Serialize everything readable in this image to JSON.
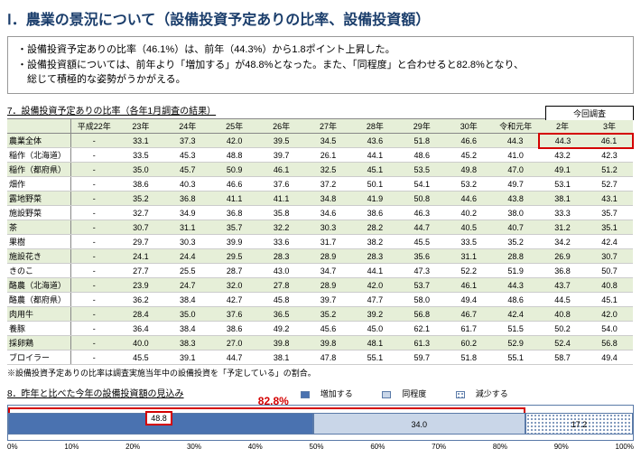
{
  "title": "Ⅰ．農業の景況について（設備投資予定ありの比率、設備投資額）",
  "summary": {
    "line1": "・設備投資予定ありの比率（46.1%）は、前年（44.3%）から1.8ポイント上昇した。",
    "line2": "・設備投資額については、前年より「増加する」が48.8%となった。また、「同程度」と合わせると82.8%となり、",
    "line3": "　総じて積極的な姿勢がうかがえる。"
  },
  "table7": {
    "heading": "7．設備投資予定ありの比率（各年1月調査の結果）",
    "this_survey": "今回調査",
    "years": [
      "",
      "平成22年",
      "23年",
      "24年",
      "25年",
      "26年",
      "27年",
      "28年",
      "29年",
      "30年",
      "令和元年",
      "2年",
      "3年"
    ],
    "rows": [
      {
        "label": "農業全体",
        "vals": [
          "-",
          "33.1",
          "37.3",
          "42.0",
          "39.5",
          "34.5",
          "43.6",
          "51.8",
          "46.6",
          "44.3",
          "44.3",
          "46.1"
        ],
        "alt": true,
        "hl": true
      },
      {
        "label": "稲作（北海道）",
        "vals": [
          "-",
          "33.5",
          "45.3",
          "48.8",
          "39.7",
          "26.1",
          "44.1",
          "48.6",
          "45.2",
          "41.0",
          "43.2",
          "42.3"
        ]
      },
      {
        "label": "稲作（都府県）",
        "vals": [
          "-",
          "35.0",
          "45.7",
          "50.9",
          "46.1",
          "32.5",
          "45.1",
          "53.5",
          "49.8",
          "47.0",
          "49.1",
          "51.2"
        ],
        "alt": true
      },
      {
        "label": "畑作",
        "vals": [
          "-",
          "38.6",
          "40.3",
          "46.6",
          "37.6",
          "37.2",
          "50.1",
          "54.1",
          "53.2",
          "49.7",
          "53.1",
          "52.7"
        ]
      },
      {
        "label": "露地野菜",
        "vals": [
          "-",
          "35.2",
          "36.8",
          "41.1",
          "41.1",
          "34.8",
          "41.9",
          "50.8",
          "44.6",
          "43.8",
          "38.1",
          "43.1"
        ],
        "alt": true
      },
      {
        "label": "施設野菜",
        "vals": [
          "-",
          "32.7",
          "34.9",
          "36.8",
          "35.8",
          "34.6",
          "38.6",
          "46.3",
          "40.2",
          "38.0",
          "33.3",
          "35.7"
        ]
      },
      {
        "label": "茶",
        "vals": [
          "-",
          "30.7",
          "31.1",
          "35.7",
          "32.2",
          "30.3",
          "28.2",
          "44.7",
          "40.5",
          "40.7",
          "31.2",
          "35.1"
        ],
        "alt": true
      },
      {
        "label": "果樹",
        "vals": [
          "-",
          "29.7",
          "30.3",
          "39.9",
          "33.6",
          "31.7",
          "38.2",
          "45.5",
          "33.5",
          "35.2",
          "34.2",
          "42.4"
        ]
      },
      {
        "label": "施設花き",
        "vals": [
          "-",
          "24.1",
          "24.4",
          "29.5",
          "28.3",
          "28.9",
          "28.3",
          "35.6",
          "31.1",
          "28.8",
          "26.9",
          "30.7"
        ],
        "alt": true
      },
      {
        "label": "きのこ",
        "vals": [
          "-",
          "27.7",
          "25.5",
          "28.7",
          "43.0",
          "34.7",
          "44.1",
          "47.3",
          "52.2",
          "51.9",
          "36.8",
          "50.7"
        ]
      },
      {
        "label": "酪農（北海道）",
        "vals": [
          "-",
          "23.9",
          "24.7",
          "32.0",
          "27.8",
          "28.9",
          "42.0",
          "53.7",
          "46.1",
          "44.3",
          "43.7",
          "40.8"
        ],
        "alt": true
      },
      {
        "label": "酪農（都府県）",
        "vals": [
          "-",
          "36.2",
          "38.4",
          "42.7",
          "45.8",
          "39.7",
          "47.7",
          "58.0",
          "49.4",
          "48.6",
          "44.5",
          "45.1"
        ]
      },
      {
        "label": "肉用牛",
        "vals": [
          "-",
          "28.4",
          "35.0",
          "37.6",
          "36.5",
          "35.2",
          "39.2",
          "56.8",
          "46.7",
          "42.4",
          "40.8",
          "42.0"
        ],
        "alt": true
      },
      {
        "label": "養豚",
        "vals": [
          "-",
          "36.4",
          "38.4",
          "38.6",
          "49.2",
          "45.6",
          "45.0",
          "62.1",
          "61.7",
          "51.5",
          "50.2",
          "54.0"
        ]
      },
      {
        "label": "採卵鶏",
        "vals": [
          "-",
          "40.0",
          "38.3",
          "27.0",
          "39.8",
          "39.8",
          "48.1",
          "61.3",
          "60.2",
          "52.9",
          "52.4",
          "56.8"
        ],
        "alt": true
      },
      {
        "label": "ブロイラー",
        "vals": [
          "-",
          "45.5",
          "39.1",
          "44.7",
          "38.1",
          "47.8",
          "55.1",
          "59.7",
          "51.8",
          "55.1",
          "58.7",
          "49.4"
        ]
      }
    ],
    "footnote": "※設備投資予定ありの比率は調査実施当年中の設備投資を「予定している」の割合。"
  },
  "chart8": {
    "heading": "8．昨年と比べた今年の設備投資額の見込み",
    "legend": {
      "inc": "増加する",
      "same": "同程度",
      "dec": "減少する"
    },
    "big_label": "82.8%",
    "values": {
      "inc": 48.8,
      "same": 34.0,
      "dec": 17.2
    },
    "inc_box": "48.8",
    "same_box": "34.0",
    "dec_box": "17.2",
    "colors": {
      "inc": "#4a72b0",
      "same": "#c9d6e8",
      "dec_border": "#5a7aa8",
      "highlight": "#d40000"
    },
    "scale": [
      "0%",
      "10%",
      "20%",
      "30%",
      "40%",
      "50%",
      "60%",
      "70%",
      "80%",
      "90%",
      "100%"
    ]
  }
}
